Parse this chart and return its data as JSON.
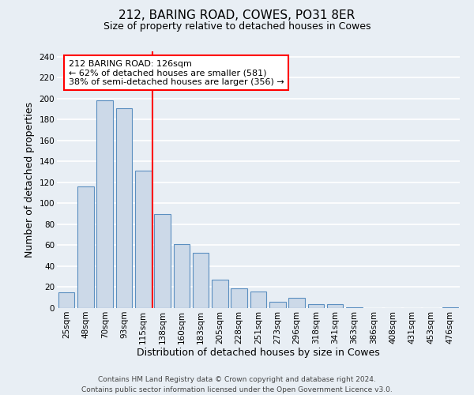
{
  "title": "212, BARING ROAD, COWES, PO31 8ER",
  "subtitle": "Size of property relative to detached houses in Cowes",
  "xlabel": "Distribution of detached houses by size in Cowes",
  "ylabel": "Number of detached properties",
  "bar_labels": [
    "25sqm",
    "48sqm",
    "70sqm",
    "93sqm",
    "115sqm",
    "138sqm",
    "160sqm",
    "183sqm",
    "205sqm",
    "228sqm",
    "251sqm",
    "273sqm",
    "296sqm",
    "318sqm",
    "341sqm",
    "363sqm",
    "386sqm",
    "408sqm",
    "431sqm",
    "453sqm",
    "476sqm"
  ],
  "bar_values": [
    15,
    116,
    198,
    191,
    131,
    90,
    61,
    53,
    27,
    19,
    16,
    6,
    10,
    4,
    4,
    1,
    0,
    0,
    0,
    0,
    1
  ],
  "bar_color": "#ccd9e8",
  "bar_edge_color": "#5b8fc0",
  "annotation_line1": "212 BARING ROAD: 126sqm",
  "annotation_line2": "← 62% of detached houses are smaller (581)",
  "annotation_line3": "38% of semi-detached houses are larger (356) →",
  "ylim": [
    0,
    245
  ],
  "yticks": [
    0,
    20,
    40,
    60,
    80,
    100,
    120,
    140,
    160,
    180,
    200,
    220,
    240
  ],
  "footer_line1": "Contains HM Land Registry data © Crown copyright and database right 2024.",
  "footer_line2": "Contains public sector information licensed under the Open Government Licence v3.0.",
  "background_color": "#e8eef4",
  "grid_color": "#ffffff",
  "title_fontsize": 11,
  "subtitle_fontsize": 9,
  "axis_label_fontsize": 9,
  "tick_fontsize": 7.5,
  "footer_fontsize": 6.5,
  "annotation_fontsize": 8
}
